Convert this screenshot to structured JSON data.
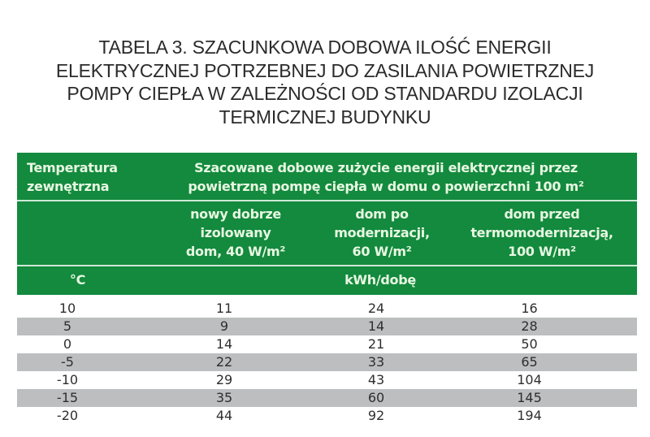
{
  "title": {
    "lines": [
      "TABELA 3. SZACUNKOWA DOBOWA ILOŚĆ ENERGII",
      "ELEKTRYCZNEJ POTRZEBNEJ DO ZASILANIA POWIETRZNEJ",
      "POMPY CIEPŁA W ZALEŻNOŚCI OD STANDARDU IZOLACJI",
      "TERMICZNEJ BUDYNKU"
    ]
  },
  "table": {
    "colors": {
      "header_bg": "#138a3e",
      "header_text": "#e8f7e2",
      "stripe_bg": "#bdbec0",
      "body_text": "#2e2e2e"
    },
    "header": {
      "temperature_label": [
        "Temperatura",
        "zewnętrzna"
      ],
      "span_label": [
        "Szacowane dobowe zużycie energii elektrycznej przez",
        "powietrzną pompę ciepła w domu o powierzchni 100 m²"
      ],
      "columns": [
        {
          "lines": [
            "nowy dobrze",
            "izolowany",
            "dom, 40 W/m²"
          ]
        },
        {
          "lines": [
            "dom po",
            "modernizacji,",
            "60 W/m²"
          ]
        },
        {
          "lines": [
            "dom przed",
            "termomodernizacją,",
            "100 W/m²"
          ]
        }
      ],
      "unit_temperature": "°C",
      "unit_energy": "kWh/dobę"
    },
    "rows": [
      {
        "temp": "10",
        "values": [
          "11",
          "24",
          "16"
        ]
      },
      {
        "temp": "5",
        "values": [
          "9",
          "14",
          "28"
        ]
      },
      {
        "temp": "0",
        "values": [
          "14",
          "21",
          "50"
        ]
      },
      {
        "temp": "-5",
        "values": [
          "22",
          "33",
          "65"
        ]
      },
      {
        "temp": "-10",
        "values": [
          "29",
          "43",
          "104"
        ]
      },
      {
        "temp": "-15",
        "values": [
          "35",
          "60",
          "145"
        ]
      },
      {
        "temp": "-20",
        "values": [
          "44",
          "92",
          "194"
        ]
      }
    ]
  }
}
